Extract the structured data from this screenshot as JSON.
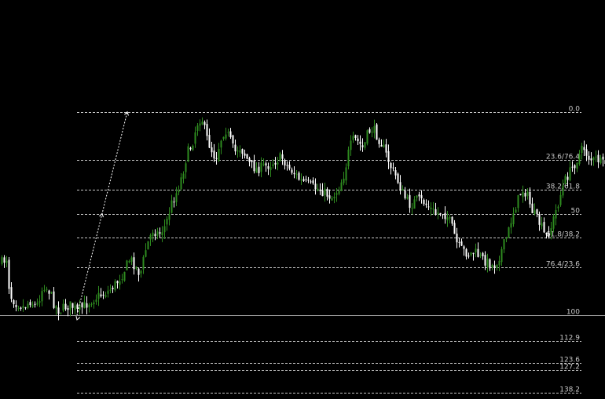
{
  "colors": {
    "background": "#000000",
    "grid_line": "#c8c8c8",
    "label_text": "#c8c8c8",
    "bull_candle": "#2e8b1f",
    "bear_candle": "#ffffff",
    "trend_arrow": "#ffffff"
  },
  "chart_data": {
    "type": "candlestick",
    "title": "",
    "xlabel": "",
    "ylabel": "",
    "ylim": [
      -1.422,
      1.422
    ],
    "fib_levels": [
      {
        "label": "138.2",
        "value": -1.382,
        "solid": false
      },
      {
        "label": "127.2",
        "value": -1.272,
        "solid": false
      },
      {
        "label": "123.6",
        "value": -1.236,
        "solid": false
      },
      {
        "label": "112.9",
        "value": -1.129,
        "solid": false
      },
      {
        "label": "0.0",
        "value": 0.0,
        "solid": false
      },
      {
        "label": "23.6/76.4",
        "value": 0.236,
        "solid": false
      },
      {
        "label": "38.2/61.8",
        "value": 0.382,
        "solid": false
      },
      {
        "label": "50",
        "value": 0.5,
        "solid": false
      },
      {
        "label": "61.8/38.2",
        "value": 0.618,
        "solid": false
      },
      {
        "label": "76.4/23.6",
        "value": 0.764,
        "solid": false
      },
      {
        "label": "100",
        "value": 1.0,
        "solid": true
      },
      {
        "label": "112.9",
        "value": 1.129,
        "solid": false
      },
      {
        "label": "123.6",
        "value": 1.236,
        "solid": false
      },
      {
        "label": "127.2",
        "value": 1.272,
        "solid": false
      },
      {
        "label": "138.2",
        "value": 1.382,
        "solid": false
      }
    ],
    "trend_line": {
      "from": [
        98,
        1.0
      ],
      "to": [
        162,
        -0.001
      ]
    },
    "x_range": [
      0,
      770
    ],
    "price_waypoints": [
      [
        2,
        0.74
      ],
      [
        8,
        0.72
      ],
      [
        12,
        0.9
      ],
      [
        20,
        0.94
      ],
      [
        30,
        0.96
      ],
      [
        38,
        0.93
      ],
      [
        46,
        0.96
      ],
      [
        55,
        0.85
      ],
      [
        62,
        0.88
      ],
      [
        68,
        0.94
      ],
      [
        75,
        0.98
      ],
      [
        82,
        0.96
      ],
      [
        90,
        0.95
      ],
      [
        98,
        0.98
      ],
      [
        108,
        0.95
      ],
      [
        118,
        0.92
      ],
      [
        128,
        0.9
      ],
      [
        138,
        0.88
      ],
      [
        148,
        0.84
      ],
      [
        155,
        0.8
      ],
      [
        165,
        0.72
      ],
      [
        172,
        0.76
      ],
      [
        178,
        0.8
      ],
      [
        186,
        0.66
      ],
      [
        194,
        0.58
      ],
      [
        202,
        0.6
      ],
      [
        210,
        0.56
      ],
      [
        218,
        0.45
      ],
      [
        226,
        0.38
      ],
      [
        232,
        0.3
      ],
      [
        238,
        0.2
      ],
      [
        244,
        0.16
      ],
      [
        250,
        0.06
      ],
      [
        256,
        0.02
      ],
      [
        262,
        0.12
      ],
      [
        268,
        0.18
      ],
      [
        274,
        0.23
      ],
      [
        280,
        0.14
      ],
      [
        286,
        0.08
      ],
      [
        292,
        0.13
      ],
      [
        298,
        0.2
      ],
      [
        304,
        0.17
      ],
      [
        310,
        0.2
      ],
      [
        318,
        0.26
      ],
      [
        326,
        0.28
      ],
      [
        334,
        0.27
      ],
      [
        342,
        0.26
      ],
      [
        350,
        0.24
      ],
      [
        358,
        0.22
      ],
      [
        366,
        0.27
      ],
      [
        374,
        0.3
      ],
      [
        382,
        0.34
      ],
      [
        390,
        0.35
      ],
      [
        398,
        0.37
      ],
      [
        406,
        0.38
      ],
      [
        414,
        0.4
      ],
      [
        422,
        0.42
      ],
      [
        430,
        0.38
      ],
      [
        438,
        0.3
      ],
      [
        444,
        0.18
      ],
      [
        450,
        0.13
      ],
      [
        456,
        0.15
      ],
      [
        462,
        0.18
      ],
      [
        468,
        0.1
      ],
      [
        474,
        0.08
      ],
      [
        480,
        0.12
      ],
      [
        486,
        0.16
      ],
      [
        492,
        0.22
      ],
      [
        498,
        0.28
      ],
      [
        504,
        0.32
      ],
      [
        510,
        0.38
      ],
      [
        516,
        0.43
      ],
      [
        522,
        0.46
      ],
      [
        530,
        0.43
      ],
      [
        538,
        0.44
      ],
      [
        546,
        0.47
      ],
      [
        554,
        0.5
      ],
      [
        562,
        0.49
      ],
      [
        570,
        0.52
      ],
      [
        576,
        0.58
      ],
      [
        582,
        0.66
      ],
      [
        588,
        0.68
      ],
      [
        596,
        0.7
      ],
      [
        604,
        0.69
      ],
      [
        612,
        0.72
      ],
      [
        620,
        0.74
      ],
      [
        628,
        0.76
      ],
      [
        634,
        0.72
      ],
      [
        640,
        0.66
      ],
      [
        646,
        0.6
      ],
      [
        652,
        0.5
      ],
      [
        658,
        0.44
      ],
      [
        664,
        0.38
      ],
      [
        670,
        0.4
      ],
      [
        676,
        0.48
      ],
      [
        682,
        0.52
      ],
      [
        688,
        0.56
      ],
      [
        694,
        0.62
      ],
      [
        700,
        0.58
      ],
      [
        706,
        0.5
      ],
      [
        712,
        0.42
      ],
      [
        718,
        0.34
      ],
      [
        724,
        0.3
      ],
      [
        730,
        0.26
      ],
      [
        736,
        0.22
      ],
      [
        742,
        0.17
      ],
      [
        748,
        0.22
      ],
      [
        754,
        0.24
      ],
      [
        760,
        0.23
      ],
      [
        766,
        0.26
      ],
      [
        770,
        0.25
      ]
    ]
  }
}
